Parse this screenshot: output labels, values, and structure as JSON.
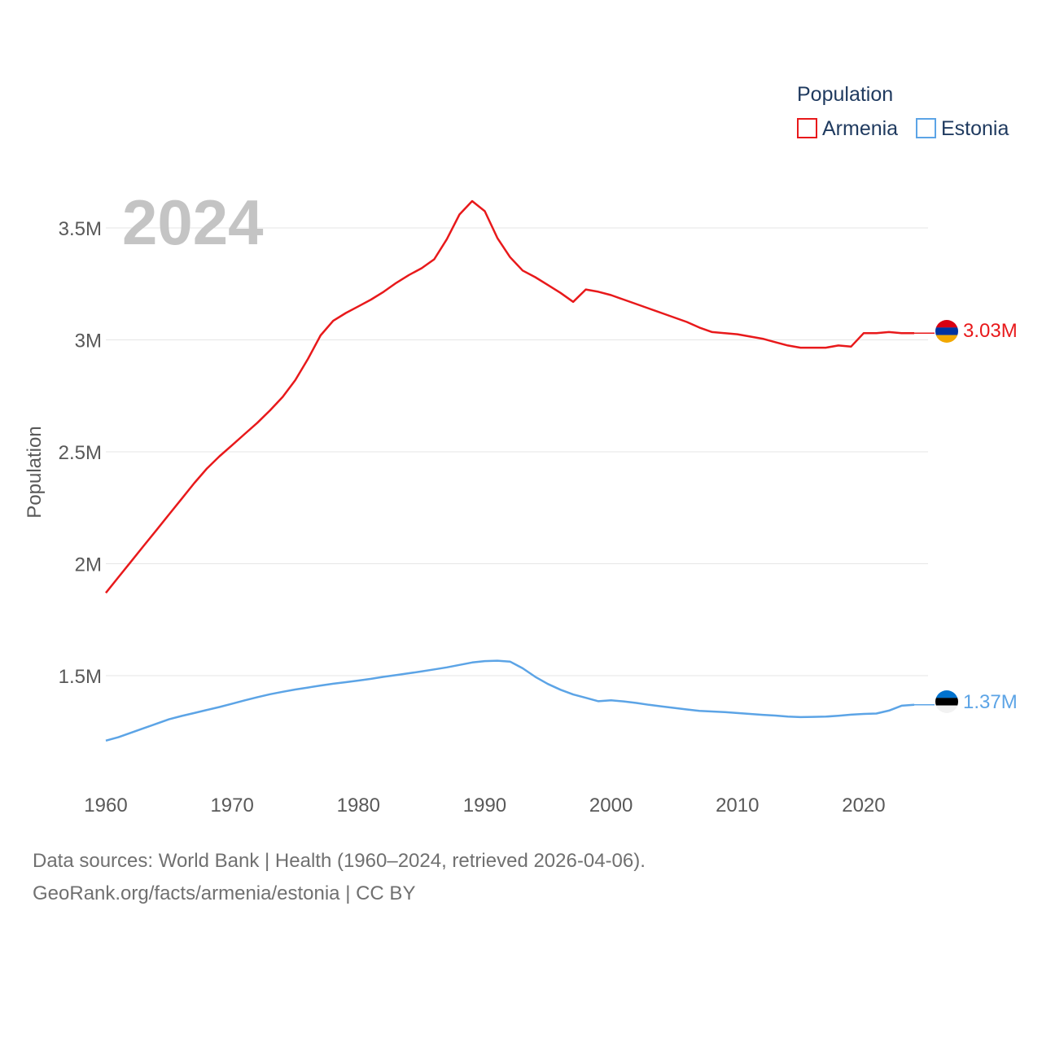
{
  "year_label": "2024",
  "legend": {
    "title": "Population",
    "items": [
      {
        "label": "Armenia",
        "color": "#e8191b"
      },
      {
        "label": "Estonia",
        "color": "#5ca4e6"
      }
    ]
  },
  "footer": {
    "line1": "Data sources: World Bank | Health (1960–2024, retrieved 2026-04-06).",
    "line2": "GeoRank.org/facts/armenia/estonia | CC BY"
  },
  "chart_data": {
    "type": "line",
    "title": "",
    "xlabel": "",
    "ylabel": "Population",
    "xlim": [
      1960,
      2024
    ],
    "ylim": [
      1200000,
      3700000
    ],
    "x_ticks": [
      1960,
      1970,
      1980,
      1990,
      2000,
      2010,
      2020
    ],
    "y_ticks": [
      {
        "value": 1500000,
        "label": "1.5M"
      },
      {
        "value": 2000000,
        "label": "2M"
      },
      {
        "value": 2500000,
        "label": "2.5M"
      },
      {
        "value": 3000000,
        "label": "3M"
      },
      {
        "value": 3500000,
        "label": "3.5M"
      }
    ],
    "x": [
      1960,
      1961,
      1962,
      1963,
      1964,
      1965,
      1966,
      1967,
      1968,
      1969,
      1970,
      1971,
      1972,
      1973,
      1974,
      1975,
      1976,
      1977,
      1978,
      1979,
      1980,
      1981,
      1982,
      1983,
      1984,
      1985,
      1986,
      1987,
      1988,
      1989,
      1990,
      1991,
      1992,
      1993,
      1994,
      1995,
      1996,
      1997,
      1998,
      1999,
      2000,
      2001,
      2002,
      2003,
      2004,
      2005,
      2006,
      2007,
      2008,
      2009,
      2010,
      2011,
      2012,
      2013,
      2014,
      2015,
      2016,
      2017,
      2018,
      2019,
      2020,
      2021,
      2022,
      2023,
      2024
    ],
    "series": [
      {
        "name": "Armenia",
        "color": "#e8191b",
        "end_label": "3.03M",
        "values": [
          1870000,
          1940000,
          2010000,
          2080000,
          2150000,
          2220000,
          2290000,
          2360000,
          2425000,
          2480000,
          2530000,
          2580000,
          2630000,
          2685000,
          2745000,
          2820000,
          2915000,
          3020000,
          3085000,
          3120000,
          3150000,
          3180000,
          3215000,
          3255000,
          3290000,
          3320000,
          3360000,
          3450000,
          3560000,
          3620000,
          3575000,
          3455000,
          3370000,
          3310000,
          3280000,
          3245000,
          3210000,
          3170000,
          3225000,
          3215000,
          3200000,
          3180000,
          3160000,
          3140000,
          3120000,
          3100000,
          3080000,
          3055000,
          3035000,
          3030000,
          3025000,
          3015000,
          3005000,
          2990000,
          2975000,
          2965000,
          2965000,
          2965000,
          2975000,
          2970000,
          3030000,
          3030000,
          3035000,
          3030000,
          3030000
        ]
      },
      {
        "name": "Estonia",
        "color": "#5ca4e6",
        "end_label": "1.37M",
        "values": [
          1210000,
          1225000,
          1245000,
          1265000,
          1285000,
          1305000,
          1320000,
          1333000,
          1347000,
          1360000,
          1375000,
          1390000,
          1404000,
          1417000,
          1428000,
          1438000,
          1447000,
          1456000,
          1464000,
          1471000,
          1478000,
          1486000,
          1495000,
          1503000,
          1511000,
          1519000,
          1528000,
          1537000,
          1548000,
          1559000,
          1565000,
          1567000,
          1563000,
          1533000,
          1495000,
          1463000,
          1437000,
          1416000,
          1401000,
          1386000,
          1390000,
          1385000,
          1378000,
          1370000,
          1363000,
          1356000,
          1349000,
          1343000,
          1340000,
          1337000,
          1333000,
          1329000,
          1325000,
          1322000,
          1317000,
          1315000,
          1316000,
          1317000,
          1321000,
          1326000,
          1329000,
          1331000,
          1344000,
          1366000,
          1370000
        ]
      }
    ]
  }
}
